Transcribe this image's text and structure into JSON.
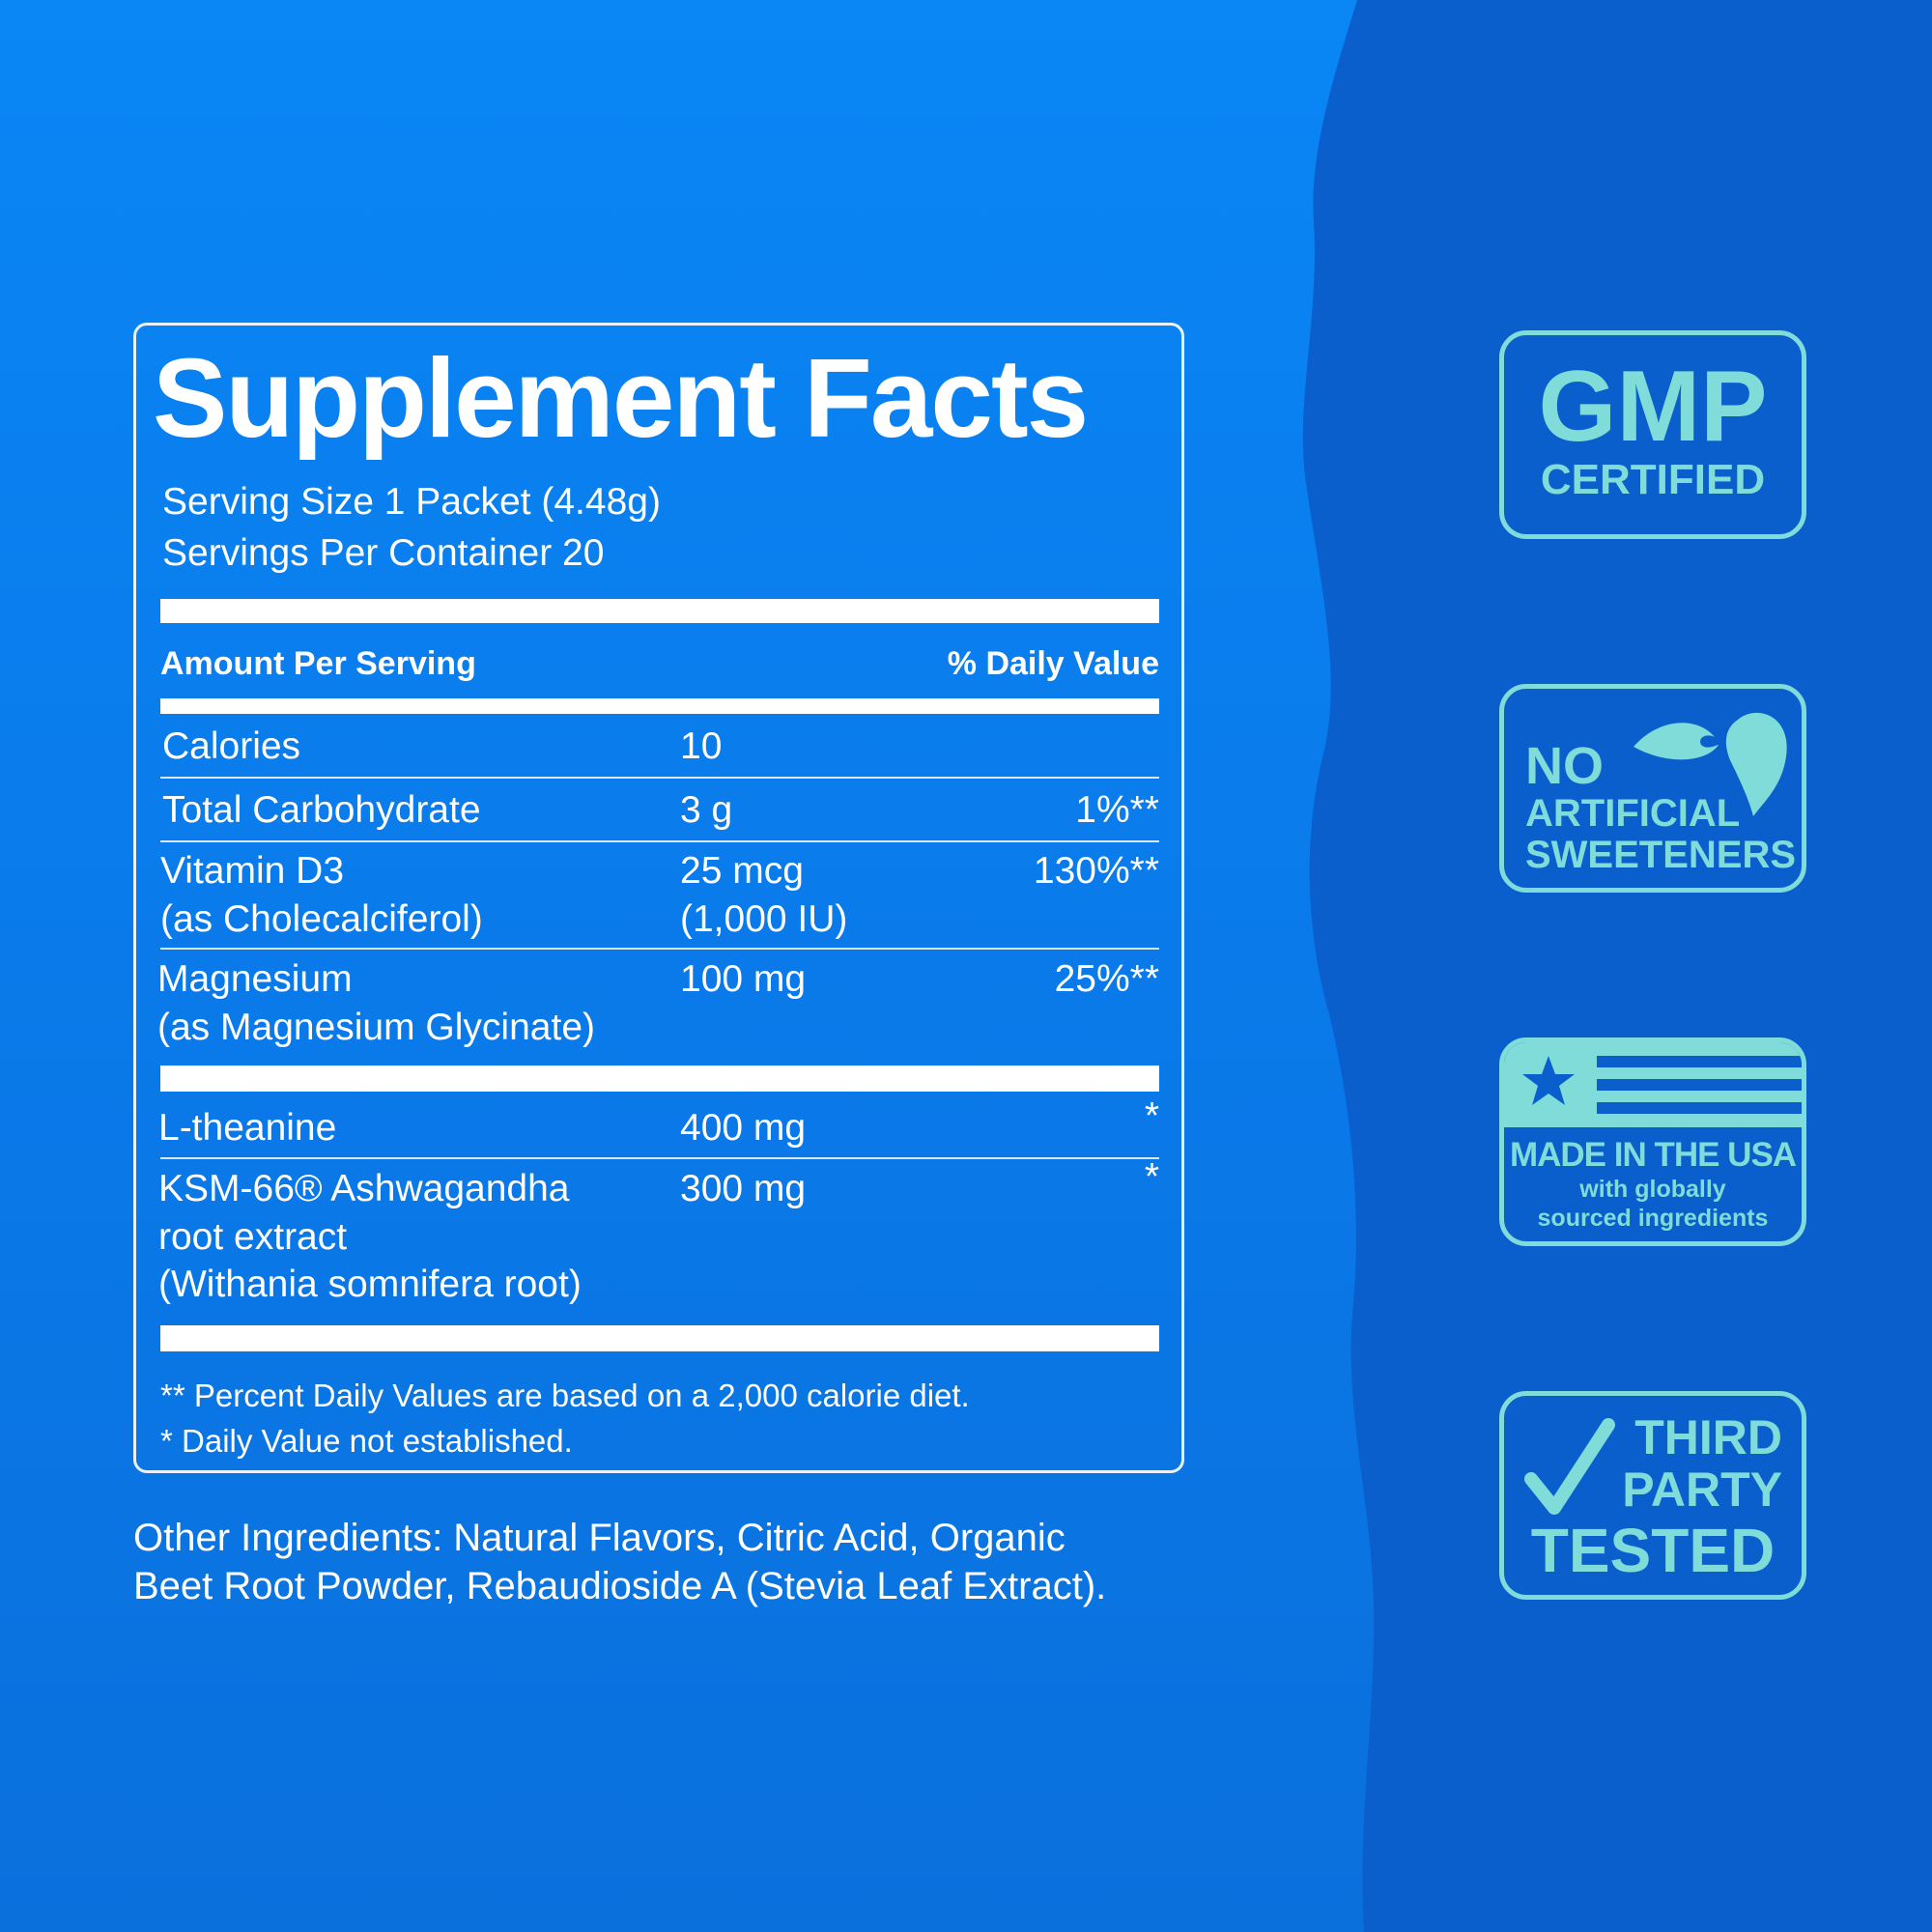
{
  "colors": {
    "background": "#0a7ff0",
    "wave": "#0b5fcc",
    "badge": "#7fdcd8",
    "text": "#ffffff"
  },
  "facts": {
    "title": "Supplement Facts",
    "serving_size": "Serving Size 1 Packet (4.48g)",
    "servings_per_container": "Servings Per Container 20",
    "header_amount": "Amount Per Serving",
    "header_dv": "% Daily Value",
    "rows": [
      {
        "name": [
          "Calories"
        ],
        "amount": [
          "10"
        ],
        "dv": ""
      },
      {
        "name": [
          "Total Carbohydrate"
        ],
        "amount": [
          "3 g"
        ],
        "dv": "1%**"
      },
      {
        "name": [
          "Vitamin D3",
          "(as Cholecalciferol)"
        ],
        "amount": [
          "25 mcg",
          "(1,000 IU)"
        ],
        "dv": "130%**"
      },
      {
        "name": [
          "Magnesium",
          "(as Magnesium Glycinate)"
        ],
        "amount": [
          "100 mg"
        ],
        "dv": "25%**"
      },
      {
        "name": [
          "L-theanine"
        ],
        "amount": [
          "400 mg"
        ],
        "dv": "*"
      },
      {
        "name": [
          "KSM-66® Ashwagandha",
          "root extract",
          "(Withania somnifera root)"
        ],
        "amount": [
          "300 mg"
        ],
        "dv": "*"
      }
    ],
    "footnotes": [
      "** Percent Daily Values are based on a 2,000 calorie diet.",
      "* Daily Value not established."
    ]
  },
  "other_ingredients": [
    "Other Ingredients: Natural Flavors, Citric Acid, Organic",
    "Beet Root Powder, Rebaudioside A (Stevia Leaf Extract)."
  ],
  "badges": {
    "gmp": {
      "line1": "GMP",
      "line2": "CERTIFIED",
      "icon": "none"
    },
    "sweeteners": {
      "line1": "NO",
      "line2": "ARTIFICIAL",
      "line3": "SWEETENERS",
      "icon": "leaf-heart-icon"
    },
    "usa": {
      "line1": "MADE IN THE USA",
      "line2": "with globally",
      "line3": "sourced ingredients",
      "icon": "flag-icon"
    },
    "tested": {
      "line1": "THIRD",
      "line2": "PARTY",
      "line3": "TESTED",
      "icon": "checkmark-icon"
    }
  }
}
